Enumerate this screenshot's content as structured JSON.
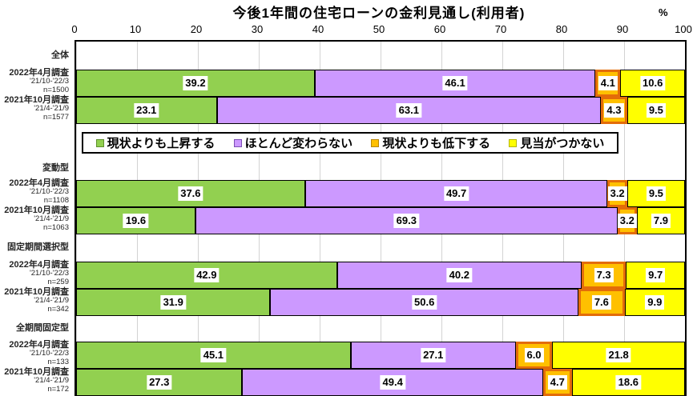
{
  "title": "今後1年間の住宅ローンの金利見通し(利用者)",
  "axis": {
    "unit": "%",
    "ticks": [
      0,
      10,
      20,
      30,
      40,
      50,
      60,
      70,
      80,
      90,
      100
    ]
  },
  "chart_data": {
    "type": "bar",
    "stacked": true,
    "orientation": "horizontal",
    "title": "今後1年間の住宅ローンの金利見通し(利用者)",
    "xlim": [
      0,
      100
    ],
    "x_ticks": [
      0,
      10,
      20,
      30,
      40,
      50,
      60,
      70,
      80,
      90,
      100
    ],
    "grid": true,
    "grid_color": "#d3d3d3",
    "legend_position": "inside-top",
    "series": [
      {
        "name": "現状よりも上昇する",
        "color": "#92D050",
        "marker_border": "#5E8F2C",
        "segment_border": "#000000"
      },
      {
        "name": "ほとんど変わらない",
        "color": "#CC99FF",
        "marker_border": "#7B4FB5",
        "segment_border": "#000000"
      },
      {
        "name": "現状よりも低下する",
        "color": "#FFC000",
        "marker_border": "#B8860B",
        "segment_border": "#E36C09"
      },
      {
        "name": "見当がつかない",
        "color": "#FFFF00",
        "marker_border": "#B5B500",
        "segment_border": "#000000"
      }
    ],
    "groups": [
      {
        "label": "全体",
        "rows": [
          {
            "survey": "2022年4月調査",
            "period": "'21/10-'22/3",
            "n": "n=1500",
            "values": [
              39.2,
              46.1,
              4.1,
              10.6
            ]
          },
          {
            "survey": "2021年10月調査",
            "period": "'21/4-'21/9",
            "n": "n=1577",
            "values": [
              23.1,
              63.1,
              4.3,
              9.5
            ]
          }
        ]
      },
      {
        "label": "変動型",
        "rows": [
          {
            "survey": "2022年4月調査",
            "period": "'21/10-'22/3",
            "n": "n=1108",
            "values": [
              37.6,
              49.7,
              3.2,
              9.5
            ]
          },
          {
            "survey": "2021年10月調査",
            "period": "'21/4-'21/9",
            "n": "n=1063",
            "values": [
              19.6,
              69.3,
              3.2,
              7.9
            ]
          }
        ]
      },
      {
        "label": "固定期間選択型",
        "rows": [
          {
            "survey": "2022年4月調査",
            "period": "'21/10-'22/3",
            "n": "n=259",
            "values": [
              42.9,
              40.2,
              7.3,
              9.7
            ]
          },
          {
            "survey": "2021年10月調査",
            "period": "'21/4-'21/9",
            "n": "n=342",
            "values": [
              31.9,
              50.6,
              7.6,
              9.9
            ]
          }
        ]
      },
      {
        "label": "全期間固定型",
        "rows": [
          {
            "survey": "2022年4月調査",
            "period": "'21/10-'22/3",
            "n": "n=133",
            "values": [
              45.1,
              27.1,
              6.0,
              21.8
            ]
          },
          {
            "survey": "2021年10月調査",
            "period": "'21/4-'21/9",
            "n": "n=172",
            "values": [
              27.3,
              49.4,
              4.7,
              18.6
            ]
          }
        ]
      }
    ]
  }
}
